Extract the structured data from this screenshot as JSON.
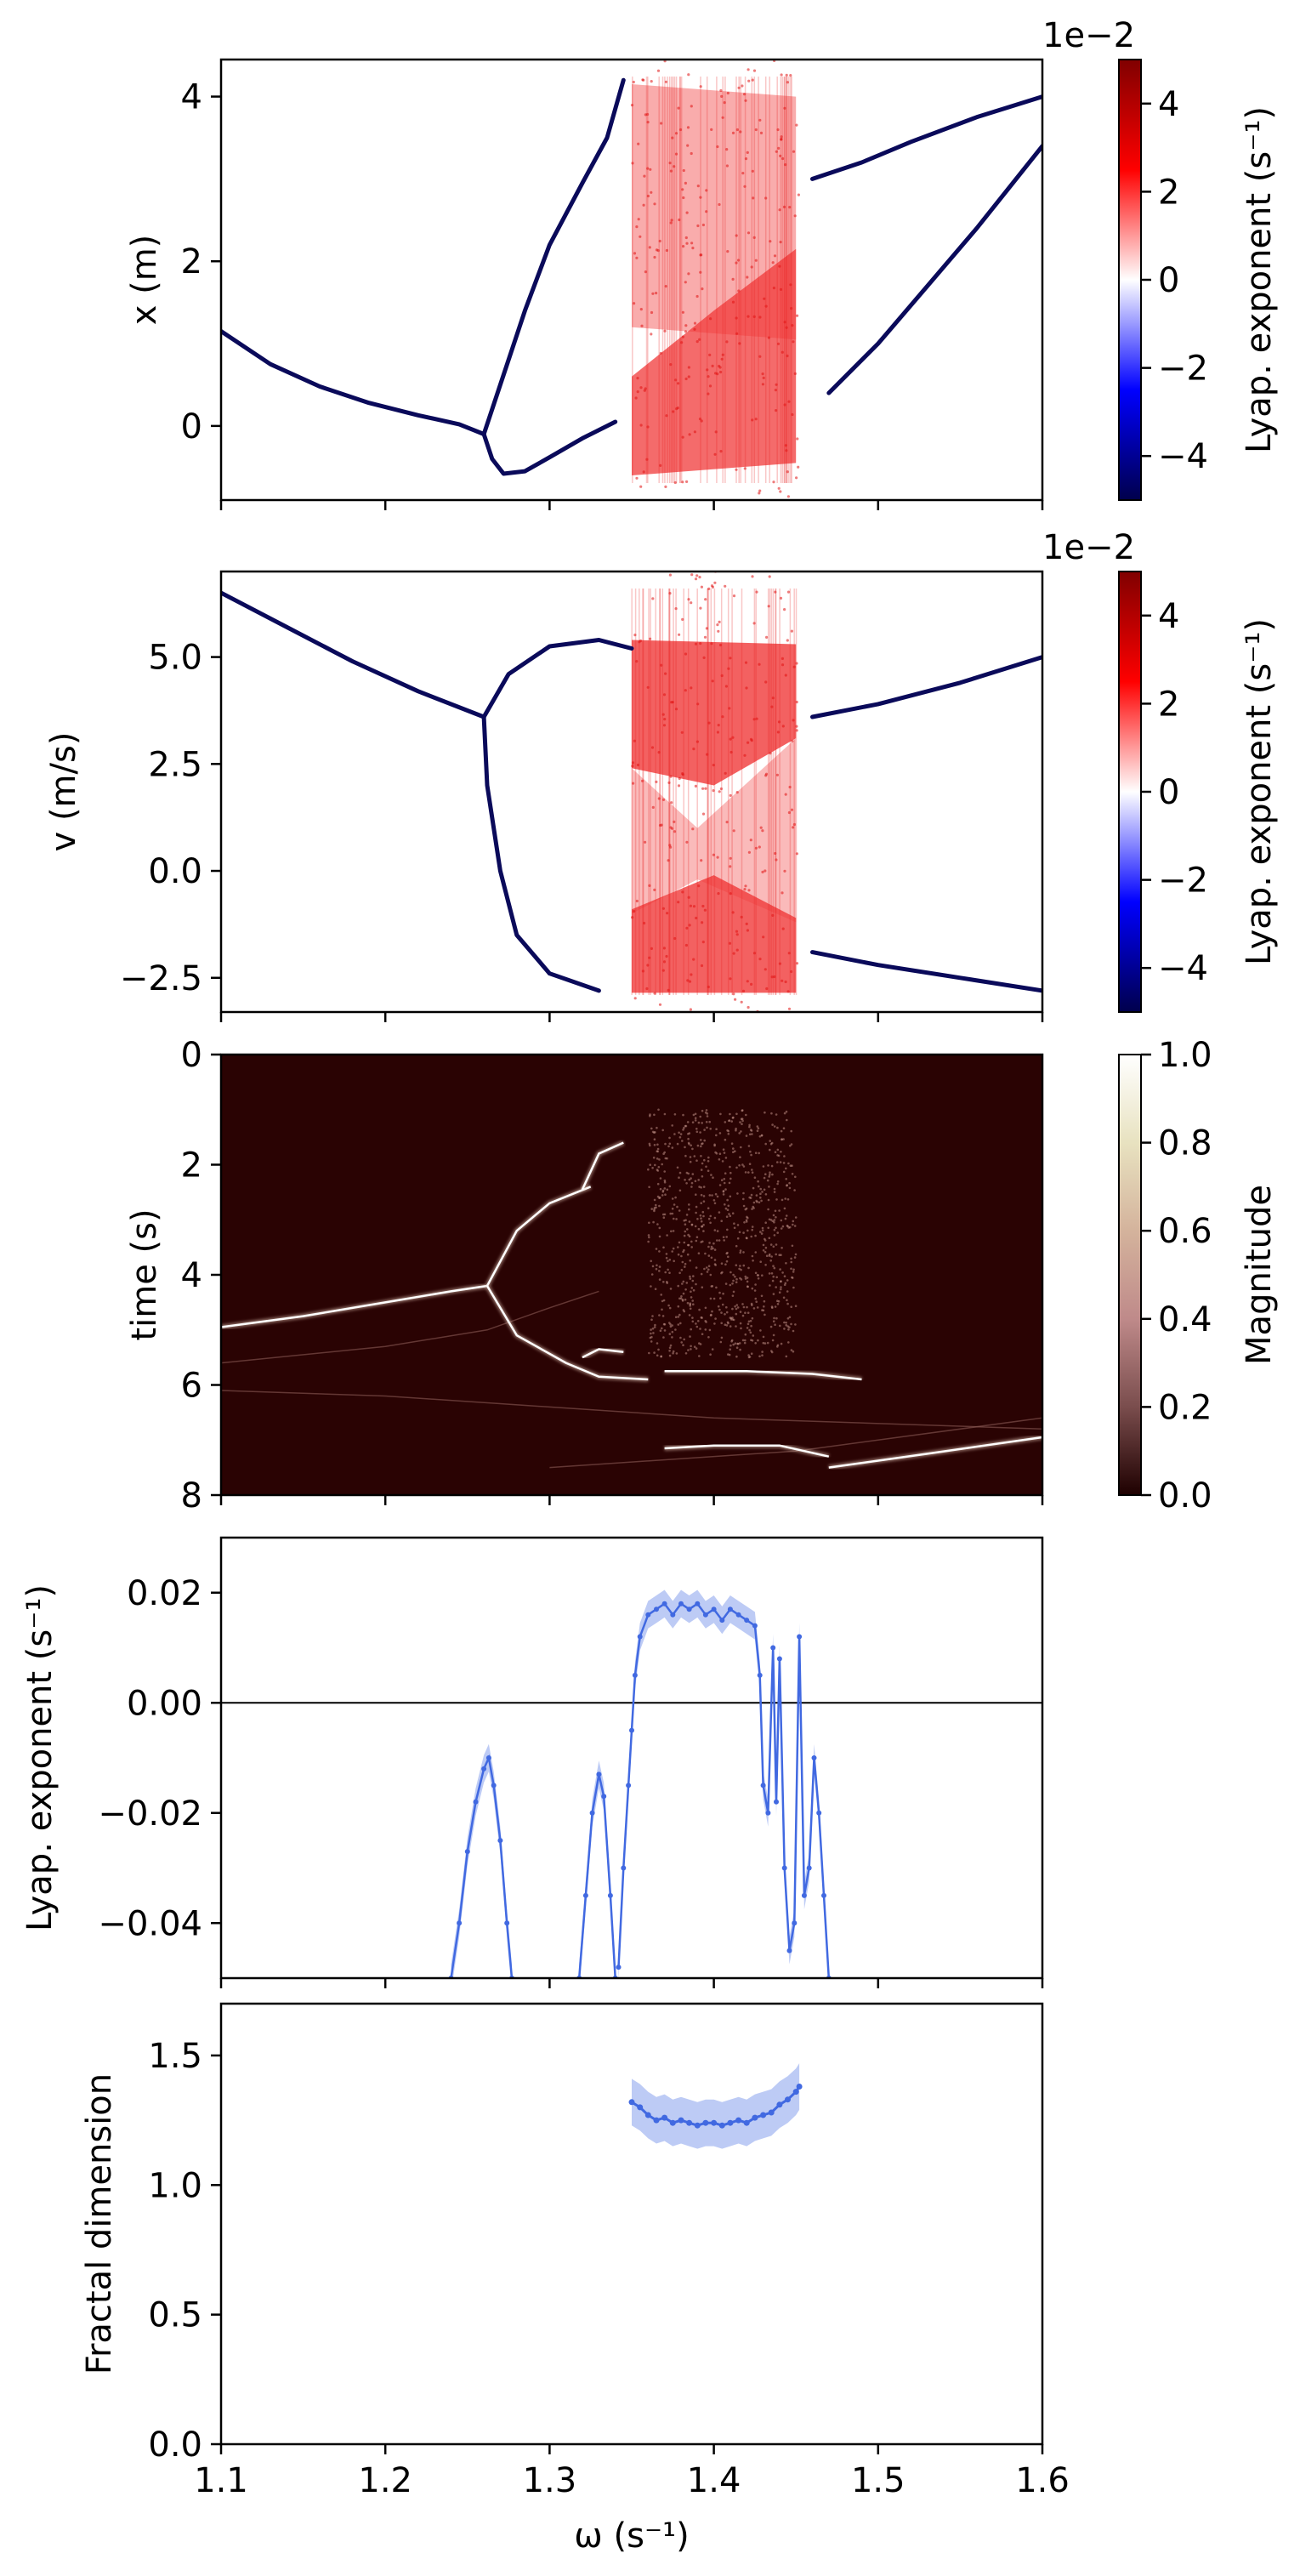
{
  "chart_data": [
    {
      "id": "x",
      "type": "scatter",
      "ylabel": "x (m)",
      "xlim": [
        1.1,
        1.6
      ],
      "ylim": [
        -0.9,
        4.45
      ],
      "xticks": [
        1.1,
        1.2,
        1.3,
        1.4,
        1.5,
        1.6
      ],
      "yticks": [
        0,
        2,
        4
      ],
      "ytick_labels": [
        "0",
        "2",
        "4"
      ],
      "colorbar": {
        "label": "Lyap. exponent (s⁻¹)",
        "offset": "1e−2",
        "range": [
          -5,
          5
        ],
        "ticks": [
          -4,
          -2,
          0,
          2,
          4
        ],
        "tick_labels": [
          "−4",
          "−2",
          "0",
          "2",
          "4"
        ],
        "colormap": "seismic"
      },
      "series": [
        {
          "values": [
            [
              1.1,
              1.15
            ],
            [
              1.13,
              0.75
            ],
            [
              1.16,
              0.48
            ],
            [
              1.19,
              0.28
            ],
            [
              1.22,
              0.13
            ],
            [
              1.245,
              0.02
            ],
            [
              1.26,
              -0.1
            ]
          ]
        },
        {
          "values": [
            [
              1.26,
              -0.1
            ],
            [
              1.265,
              -0.4
            ],
            [
              1.272,
              -0.58
            ],
            [
              1.285,
              -0.55
            ],
            [
              1.3,
              -0.38
            ],
            [
              1.32,
              -0.15
            ],
            [
              1.34,
              0.05
            ]
          ]
        },
        {
          "values": [
            [
              1.26,
              -0.1
            ],
            [
              1.27,
              0.5
            ],
            [
              1.285,
              1.4
            ],
            [
              1.3,
              2.2
            ],
            [
              1.32,
              2.95
            ],
            [
              1.335,
              3.5
            ],
            [
              1.345,
              4.2
            ]
          ]
        },
        {
          "values": [
            [
              1.47,
              0.4
            ],
            [
              1.5,
              1.0
            ],
            [
              1.53,
              1.7
            ],
            [
              1.56,
              2.4
            ],
            [
              1.6,
              3.4
            ]
          ]
        },
        {
          "values": [
            [
              1.46,
              3.0
            ],
            [
              1.49,
              3.2
            ],
            [
              1.52,
              3.45
            ],
            [
              1.56,
              3.75
            ],
            [
              1.6,
              4.0
            ]
          ]
        }
      ],
      "chaotic_region": {
        "x_range": [
          1.35,
          1.452
        ],
        "lyap": 1
      }
    },
    {
      "id": "v",
      "type": "scatter",
      "ylabel": "v (m/s)",
      "xlim": [
        1.1,
        1.6
      ],
      "ylim": [
        -3.3,
        7.0
      ],
      "xticks": [
        1.1,
        1.2,
        1.3,
        1.4,
        1.5,
        1.6
      ],
      "yticks": [
        -2.5,
        0,
        2.5,
        5.0
      ],
      "ytick_labels": [
        "−2.5",
        "0.0",
        "2.5",
        "5.0"
      ],
      "colorbar": {
        "label": "Lyap. exponent (s⁻¹)",
        "offset": "1e−2",
        "range": [
          -5,
          5
        ],
        "ticks": [
          -4,
          -2,
          0,
          2,
          4
        ],
        "tick_labels": [
          "−4",
          "−2",
          "0",
          "2",
          "4"
        ],
        "colormap": "seismic"
      },
      "series": [
        {
          "values": [
            [
              1.1,
              6.5
            ],
            [
              1.14,
              5.7
            ],
            [
              1.18,
              4.9
            ],
            [
              1.22,
              4.2
            ],
            [
              1.26,
              3.6
            ]
          ]
        },
        {
          "values": [
            [
              1.26,
              3.6
            ],
            [
              1.275,
              4.6
            ],
            [
              1.3,
              5.25
            ],
            [
              1.33,
              5.4
            ],
            [
              1.35,
              5.2
            ]
          ]
        },
        {
          "values": [
            [
              1.26,
              3.6
            ],
            [
              1.262,
              2.0
            ],
            [
              1.27,
              0.0
            ],
            [
              1.28,
              -1.5
            ],
            [
              1.3,
              -2.4
            ],
            [
              1.33,
              -2.8
            ]
          ]
        },
        {
          "values": [
            [
              1.46,
              3.6
            ],
            [
              1.5,
              3.9
            ],
            [
              1.55,
              4.4
            ],
            [
              1.6,
              5.0
            ]
          ]
        },
        {
          "values": [
            [
              1.46,
              -1.9
            ],
            [
              1.5,
              -2.2
            ],
            [
              1.55,
              -2.5
            ],
            [
              1.6,
              -2.8
            ]
          ]
        }
      ],
      "chaotic_region": {
        "x_range": [
          1.35,
          1.452
        ],
        "lyap": 1
      }
    },
    {
      "id": "time",
      "type": "heatmap",
      "ylabel": "time (s)",
      "xlim": [
        1.1,
        1.6
      ],
      "ylim": [
        8,
        0
      ],
      "xticks": [
        1.1,
        1.2,
        1.3,
        1.4,
        1.5,
        1.6
      ],
      "yticks": [
        0,
        2,
        4,
        6,
        8
      ],
      "ytick_labels": [
        "0",
        "2",
        "4",
        "6",
        "8"
      ],
      "colorbar": {
        "label": "Magnitude",
        "range": [
          0,
          1
        ],
        "ticks": [
          0,
          0.2,
          0.4,
          0.6,
          0.8,
          1.0
        ],
        "tick_labels": [
          "0.0",
          "0.2",
          "0.4",
          "0.6",
          "0.8",
          "1.0"
        ],
        "colormap": "pink"
      },
      "ridges": [
        {
          "values": [
            [
              1.1,
              4.95
            ],
            [
              1.15,
              4.75
            ],
            [
              1.2,
              4.5
            ],
            [
              1.24,
              4.3
            ],
            [
              1.262,
              4.2
            ]
          ]
        },
        {
          "values": [
            [
              1.262,
              4.2
            ],
            [
              1.28,
              3.2
            ],
            [
              1.3,
              2.7
            ],
            [
              1.325,
              2.4
            ]
          ]
        },
        {
          "values": [
            [
              1.262,
              4.2
            ],
            [
              1.28,
              5.1
            ],
            [
              1.31,
              5.6
            ],
            [
              1.33,
              5.85
            ],
            [
              1.36,
              5.9
            ]
          ]
        },
        {
          "values": [
            [
              1.32,
              2.45
            ],
            [
              1.33,
              1.8
            ],
            [
              1.345,
              1.6
            ]
          ]
        },
        {
          "values": [
            [
              1.32,
              5.5
            ],
            [
              1.33,
              5.35
            ],
            [
              1.345,
              5.4
            ]
          ]
        },
        {
          "values": [
            [
              1.37,
              5.75
            ],
            [
              1.42,
              5.75
            ],
            [
              1.46,
              5.8
            ],
            [
              1.49,
              5.9
            ]
          ]
        },
        {
          "values": [
            [
              1.37,
              7.15
            ],
            [
              1.4,
              7.1
            ],
            [
              1.44,
              7.1
            ],
            [
              1.47,
              7.3
            ]
          ]
        },
        {
          "values": [
            [
              1.47,
              7.5
            ],
            [
              1.53,
              7.25
            ],
            [
              1.6,
              6.95
            ]
          ]
        }
      ],
      "faint_curves": [
        {
          "values": [
            [
              1.1,
              5.6
            ],
            [
              1.2,
              5.3
            ],
            [
              1.262,
              5.0
            ],
            [
              1.3,
              4.6
            ],
            [
              1.33,
              4.3
            ]
          ]
        },
        {
          "values": [
            [
              1.1,
              6.1
            ],
            [
              1.2,
              6.2
            ],
            [
              1.3,
              6.4
            ],
            [
              1.4,
              6.6
            ],
            [
              1.6,
              6.8
            ]
          ]
        },
        {
          "values": [
            [
              1.3,
              7.5
            ],
            [
              1.45,
              7.2
            ],
            [
              1.6,
              6.6
            ]
          ]
        }
      ],
      "speckle_region": {
        "x_range": [
          1.36,
          1.45
        ],
        "y_range": [
          1.0,
          5.5
        ]
      }
    },
    {
      "id": "lyap",
      "type": "line",
      "ylabel": "Lyap. exponent (s⁻¹)",
      "xlim": [
        1.1,
        1.6
      ],
      "ylim": [
        -0.05,
        0.03
      ],
      "xticks": [
        1.1,
        1.2,
        1.3,
        1.4,
        1.5,
        1.6
      ],
      "yticks": [
        -0.04,
        -0.02,
        0.0,
        0.02
      ],
      "ytick_labels": [
        "−0.04",
        "−0.02",
        "0.00",
        "0.02"
      ],
      "hline": 0,
      "series": [
        {
          "values": [
            [
              1.24,
              -0.05
            ],
            [
              1.245,
              -0.04
            ],
            [
              1.25,
              -0.027
            ],
            [
              1.255,
              -0.018
            ],
            [
              1.26,
              -0.012
            ],
            [
              1.263,
              -0.01
            ],
            [
              1.266,
              -0.015
            ],
            [
              1.27,
              -0.025
            ],
            [
              1.274,
              -0.04
            ],
            [
              1.277,
              -0.05
            ]
          ]
        },
        {
          "values": [
            [
              1.318,
              -0.05
            ],
            [
              1.322,
              -0.035
            ],
            [
              1.326,
              -0.02
            ],
            [
              1.33,
              -0.013
            ],
            [
              1.333,
              -0.017
            ],
            [
              1.337,
              -0.035
            ],
            [
              1.34,
              -0.05
            ]
          ]
        },
        {
          "values": [
            [
              1.342,
              -0.048
            ],
            [
              1.345,
              -0.03
            ],
            [
              1.348,
              -0.015
            ],
            [
              1.35,
              -0.005
            ],
            [
              1.352,
              0.005
            ],
            [
              1.355,
              0.012
            ],
            [
              1.36,
              0.016
            ],
            [
              1.365,
              0.017
            ],
            [
              1.37,
              0.018
            ],
            [
              1.375,
              0.016
            ],
            [
              1.38,
              0.018
            ],
            [
              1.385,
              0.017
            ],
            [
              1.39,
              0.018
            ],
            [
              1.395,
              0.016
            ],
            [
              1.4,
              0.017
            ],
            [
              1.405,
              0.015
            ],
            [
              1.41,
              0.017
            ],
            [
              1.415,
              0.016
            ],
            [
              1.42,
              0.015
            ],
            [
              1.425,
              0.014
            ],
            [
              1.428,
              0.005
            ],
            [
              1.43,
              -0.015
            ],
            [
              1.433,
              -0.02
            ],
            [
              1.436,
              0.01
            ],
            [
              1.438,
              -0.018
            ],
            [
              1.44,
              0.008
            ],
            [
              1.443,
              -0.03
            ],
            [
              1.446,
              -0.045
            ],
            [
              1.449,
              -0.04
            ],
            [
              1.452,
              0.012
            ],
            [
              1.455,
              -0.035
            ],
            [
              1.458,
              -0.03
            ],
            [
              1.461,
              -0.01
            ],
            [
              1.464,
              -0.02
            ],
            [
              1.467,
              -0.035
            ],
            [
              1.47,
              -0.05
            ]
          ]
        }
      ]
    },
    {
      "id": "fractal",
      "type": "line",
      "ylabel": "Fractal dimension",
      "xlabel": "ω (s⁻¹)",
      "xlim": [
        1.1,
        1.6
      ],
      "ylim": [
        0,
        1.7
      ],
      "xticks": [
        1.1,
        1.2,
        1.3,
        1.4,
        1.5,
        1.6
      ],
      "xtick_labels": [
        "1.1",
        "1.2",
        "1.3",
        "1.4",
        "1.5",
        "1.6"
      ],
      "yticks": [
        0,
        0.5,
        1.0,
        1.5
      ],
      "ytick_labels": [
        "0.0",
        "0.5",
        "1.0",
        "1.5"
      ],
      "series": [
        {
          "values": [
            [
              1.35,
              1.32
            ],
            [
              1.355,
              1.3
            ],
            [
              1.36,
              1.27
            ],
            [
              1.365,
              1.25
            ],
            [
              1.37,
              1.26
            ],
            [
              1.375,
              1.24
            ],
            [
              1.38,
              1.25
            ],
            [
              1.385,
              1.24
            ],
            [
              1.39,
              1.23
            ],
            [
              1.395,
              1.24
            ],
            [
              1.4,
              1.24
            ],
            [
              1.405,
              1.23
            ],
            [
              1.41,
              1.24
            ],
            [
              1.415,
              1.25
            ],
            [
              1.42,
              1.24
            ],
            [
              1.425,
              1.26
            ],
            [
              1.43,
              1.27
            ],
            [
              1.435,
              1.28
            ],
            [
              1.44,
              1.31
            ],
            [
              1.445,
              1.33
            ],
            [
              1.45,
              1.36
            ],
            [
              1.452,
              1.38
            ]
          ]
        }
      ]
    }
  ]
}
